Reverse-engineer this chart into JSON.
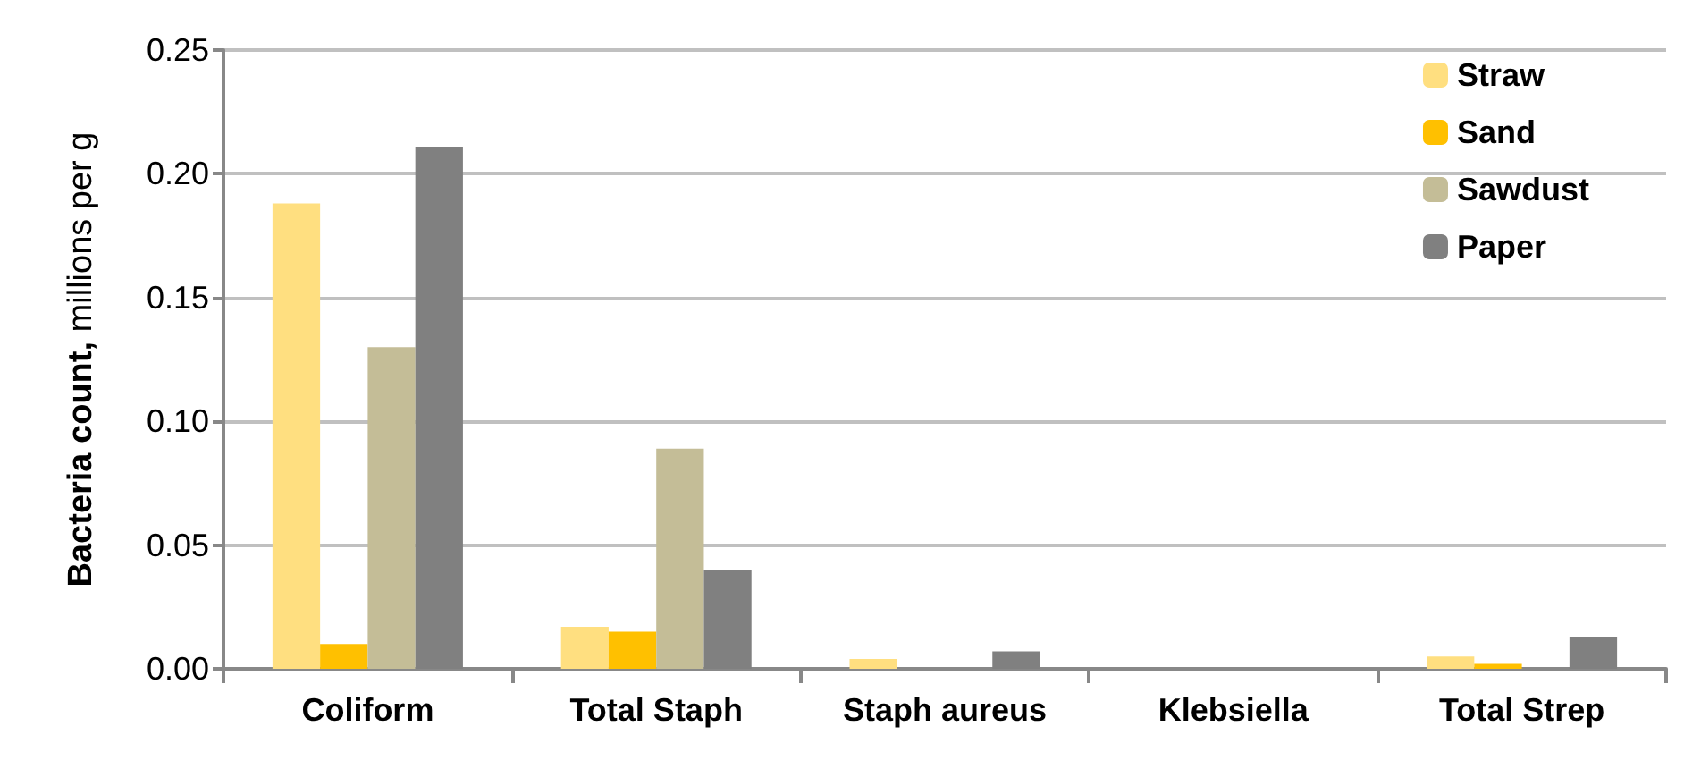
{
  "chart_data": {
    "type": "bar",
    "ylabel": "Bacteria count, millions per g",
    "categories": [
      "Coliform",
      "Total Staph",
      "Staph aureus",
      "Klebsiella",
      "Total Strep"
    ],
    "series": [
      {
        "name": "Straw",
        "color": "#ffdf80",
        "values": [
          0.188,
          0.017,
          0.004,
          0,
          0.005
        ]
      },
      {
        "name": "Sand",
        "color": "#ffc000",
        "values": [
          0.01,
          0.015,
          0,
          0,
          0.002
        ]
      },
      {
        "name": "Sawdust",
        "color": "#c4bd97",
        "values": [
          0.13,
          0.089,
          0,
          0,
          0
        ]
      },
      {
        "name": "Paper",
        "color": "#808080",
        "values": [
          0.211,
          0.04,
          0.007,
          0,
          0.013
        ]
      }
    ],
    "ylim": [
      0,
      0.25
    ],
    "yticks": [
      {
        "value": 0,
        "label": "0.00"
      },
      {
        "value": 0.05,
        "label": "0.05"
      },
      {
        "value": 0.1,
        "label": "0.10"
      },
      {
        "value": 0.15,
        "label": "0.15"
      },
      {
        "value": 0.2,
        "label": "0.20"
      },
      {
        "value": 0.25,
        "label": "0.25"
      }
    ],
    "grid": "y",
    "legend": "top right"
  }
}
